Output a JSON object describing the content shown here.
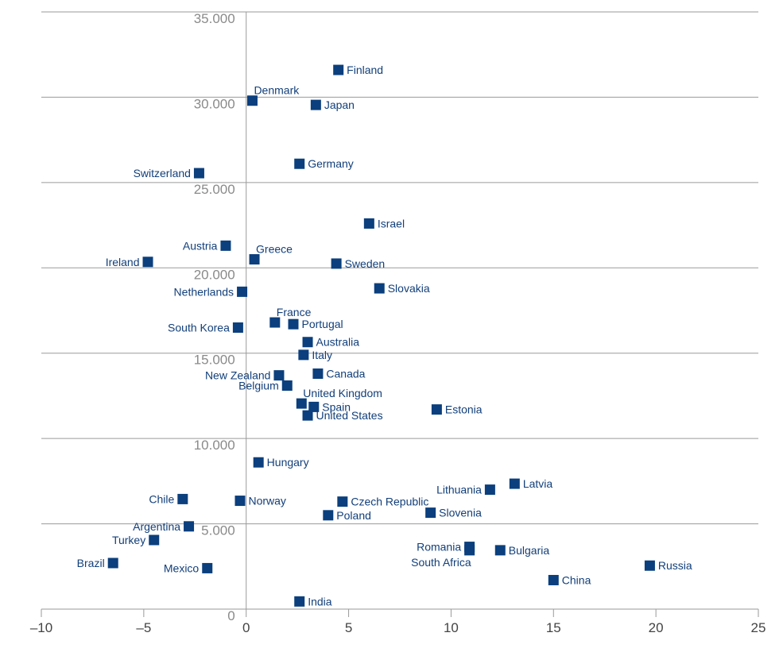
{
  "chart_data": {
    "type": "scatter",
    "title": "",
    "xlabel": "",
    "ylabel": "",
    "xlim": [
      -10,
      25
    ],
    "ylim": [
      0,
      35000
    ],
    "x_ticks": [
      -10,
      -5,
      0,
      5,
      10,
      15,
      20,
      25
    ],
    "x_tick_labels": [
      "–10",
      "–5",
      "0",
      "5",
      "10",
      "15",
      "20",
      "25"
    ],
    "y_ticks": [
      0,
      5000,
      10000,
      15000,
      20000,
      25000,
      30000,
      35000
    ],
    "y_tick_labels": [
      "0",
      "5.000",
      "10.000",
      "15.000",
      "20.000",
      "25.000",
      "30.000",
      "35.000"
    ],
    "grid": "horizontal",
    "marker_color": "#0b3f7d",
    "points": [
      {
        "label": "Finland",
        "x": 4.5,
        "y": 31600,
        "pos": "right"
      },
      {
        "label": "Denmark",
        "x": 0.3,
        "y": 29800,
        "pos": "topright"
      },
      {
        "label": "Japan",
        "x": 3.4,
        "y": 29550,
        "pos": "right"
      },
      {
        "label": "Germany",
        "x": 2.6,
        "y": 26100,
        "pos": "right"
      },
      {
        "label": "Switzerland",
        "x": -2.3,
        "y": 25550,
        "pos": "left"
      },
      {
        "label": "Israel",
        "x": 6.0,
        "y": 22600,
        "pos": "right"
      },
      {
        "label": "Austria",
        "x": -1.0,
        "y": 21300,
        "pos": "left"
      },
      {
        "label": "Greece",
        "x": 0.4,
        "y": 20500,
        "pos": "topright"
      },
      {
        "label": "Ireland",
        "x": -4.8,
        "y": 20350,
        "pos": "left"
      },
      {
        "label": "Sweden",
        "x": 4.4,
        "y": 20250,
        "pos": "right"
      },
      {
        "label": "Slovakia",
        "x": 6.5,
        "y": 18800,
        "pos": "right"
      },
      {
        "label": "Netherlands",
        "x": -0.2,
        "y": 18600,
        "pos": "left"
      },
      {
        "label": "France",
        "x": 1.4,
        "y": 16800,
        "pos": "topright"
      },
      {
        "label": "Portugal",
        "x": 2.3,
        "y": 16700,
        "pos": "right"
      },
      {
        "label": "South Korea",
        "x": -0.4,
        "y": 16500,
        "pos": "left"
      },
      {
        "label": "Australia",
        "x": 3.0,
        "y": 15650,
        "pos": "right"
      },
      {
        "label": "Italy",
        "x": 2.8,
        "y": 14900,
        "pos": "right"
      },
      {
        "label": "New Zealand",
        "x": 1.6,
        "y": 13700,
        "pos": "left"
      },
      {
        "label": "Canada",
        "x": 3.5,
        "y": 13800,
        "pos": "right"
      },
      {
        "label": "Belgium",
        "x": 2.0,
        "y": 13100,
        "pos": "left"
      },
      {
        "label": "United Kingdom",
        "x": 2.7,
        "y": 12050,
        "pos": "topright"
      },
      {
        "label": "Spain",
        "x": 3.3,
        "y": 11850,
        "pos": "right"
      },
      {
        "label": "United States",
        "x": 3.0,
        "y": 11350,
        "pos": "right"
      },
      {
        "label": "Estonia",
        "x": 9.3,
        "y": 11700,
        "pos": "right"
      },
      {
        "label": "Hungary",
        "x": 0.6,
        "y": 8600,
        "pos": "right"
      },
      {
        "label": "Latvia",
        "x": 13.1,
        "y": 7350,
        "pos": "right"
      },
      {
        "label": "Lithuania",
        "x": 11.9,
        "y": 7000,
        "pos": "left"
      },
      {
        "label": "Chile",
        "x": -3.1,
        "y": 6450,
        "pos": "left"
      },
      {
        "label": "Norway",
        "x": -0.3,
        "y": 6350,
        "pos": "right"
      },
      {
        "label": "Czech Republic",
        "x": 4.7,
        "y": 6300,
        "pos": "right"
      },
      {
        "label": "Slovenia",
        "x": 9.0,
        "y": 5650,
        "pos": "right"
      },
      {
        "label": "Poland",
        "x": 4.0,
        "y": 5500,
        "pos": "right"
      },
      {
        "label": "Argentina",
        "x": -2.8,
        "y": 4850,
        "pos": "left"
      },
      {
        "label": "Turkey",
        "x": -4.5,
        "y": 4050,
        "pos": "left"
      },
      {
        "label": "Romania",
        "x": 10.9,
        "y": 3650,
        "pos": "left"
      },
      {
        "label": "South Africa",
        "x": 10.9,
        "y": 3450,
        "pos": "bottomleft"
      },
      {
        "label": "Bulgaria",
        "x": 12.4,
        "y": 3450,
        "pos": "right"
      },
      {
        "label": "Brazil",
        "x": -6.5,
        "y": 2700,
        "pos": "left"
      },
      {
        "label": "Russia",
        "x": 19.7,
        "y": 2550,
        "pos": "right"
      },
      {
        "label": "Mexico",
        "x": -1.9,
        "y": 2400,
        "pos": "left"
      },
      {
        "label": "China",
        "x": 15.0,
        "y": 1700,
        "pos": "right"
      },
      {
        "label": "India",
        "x": 2.6,
        "y": 450,
        "pos": "right"
      }
    ]
  }
}
